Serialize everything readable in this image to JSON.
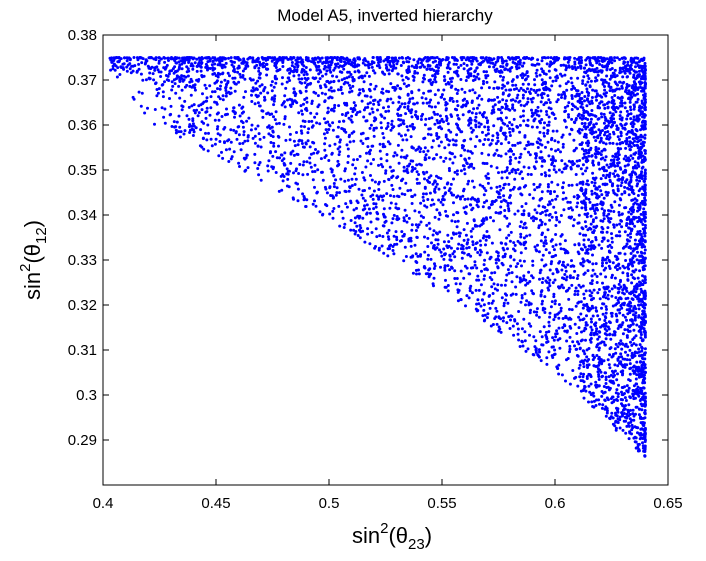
{
  "chart_data": {
    "type": "scatter",
    "title": "Model A5, inverted hierarchy",
    "xlabel": {
      "base": "sin",
      "sup": "2",
      "open": "(θ",
      "sub": "23",
      "close": ")"
    },
    "ylabel": {
      "base": "sin",
      "sup": "2",
      "open": "(θ",
      "sub": "12",
      "close": ")"
    },
    "xlim": [
      0.4,
      0.65
    ],
    "ylim": [
      0.28,
      0.38
    ],
    "x_ticks": [
      0.4,
      0.45,
      0.5,
      0.55,
      0.6,
      0.65
    ],
    "y_ticks": [
      0.29,
      0.3,
      0.31,
      0.32,
      0.33,
      0.34,
      0.35,
      0.36,
      0.37,
      0.38
    ],
    "x_tick_labels": [
      "0.4",
      "0.45",
      "0.5",
      "0.55",
      "0.6",
      "0.65"
    ],
    "y_tick_labels": [
      "0.29",
      "0.3",
      "0.31",
      "0.32",
      "0.33",
      "0.34",
      "0.35",
      "0.36",
      "0.37",
      "0.38"
    ],
    "grid": false,
    "marker_color": "#0000ff",
    "series": [
      {
        "region": {
          "x_range": [
            0.403,
            0.64
          ],
          "y_range": [
            0.286,
            0.375
          ],
          "lower_edge": [
            {
              "x": 0.403,
              "y": 0.365
            },
            {
              "x": 0.45,
              "y": 0.353
            },
            {
              "x": 0.5,
              "y": 0.339
            },
            {
              "x": 0.55,
              "y": 0.323
            },
            {
              "x": 0.6,
              "y": 0.305
            },
            {
              "x": 0.64,
              "y": 0.286
            }
          ],
          "dense_bands": [
            {
              "axis": "y",
              "value": 0.375,
              "note": "upper boundary"
            },
            {
              "axis": "x",
              "value": 0.64,
              "note": "right boundary"
            }
          ],
          "approx_points": 6000
        }
      }
    ]
  }
}
